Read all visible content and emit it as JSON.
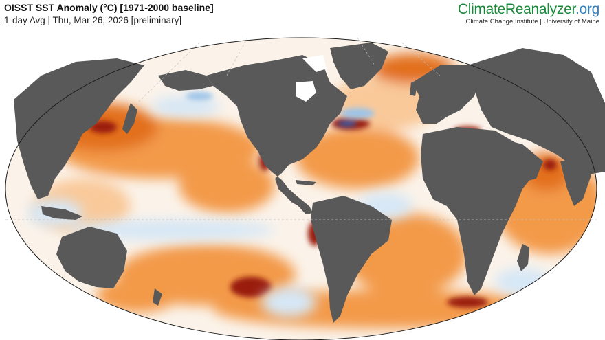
{
  "header": {
    "title": "OISST SST Anomaly (°C) [1971-2000 baseline]",
    "subtitle": "1-day Avg | Thu, Mar 26, 2026 [preliminary]"
  },
  "branding": {
    "name_main": "ClimateReanalyzer",
    "name_suffix": ".org",
    "subtitle": "Climate Change Institute | University of Maine"
  },
  "map": {
    "projection": "robinson-world",
    "colors": {
      "ocean_neutral": "#fbf3ea",
      "warm_light": "#f9c99a",
      "warm_mid": "#f39a4a",
      "warm_strong": "#e2701e",
      "warm_extreme": "#9a1d0b",
      "cool_light": "#d6e7f6",
      "cool_mid": "#9ec4e8",
      "cool_strong": "#2f62b8",
      "land": "#595959",
      "ice": "#ffffff",
      "borders": "#1c1c1c",
      "graticule": "#bfbfbf"
    }
  }
}
